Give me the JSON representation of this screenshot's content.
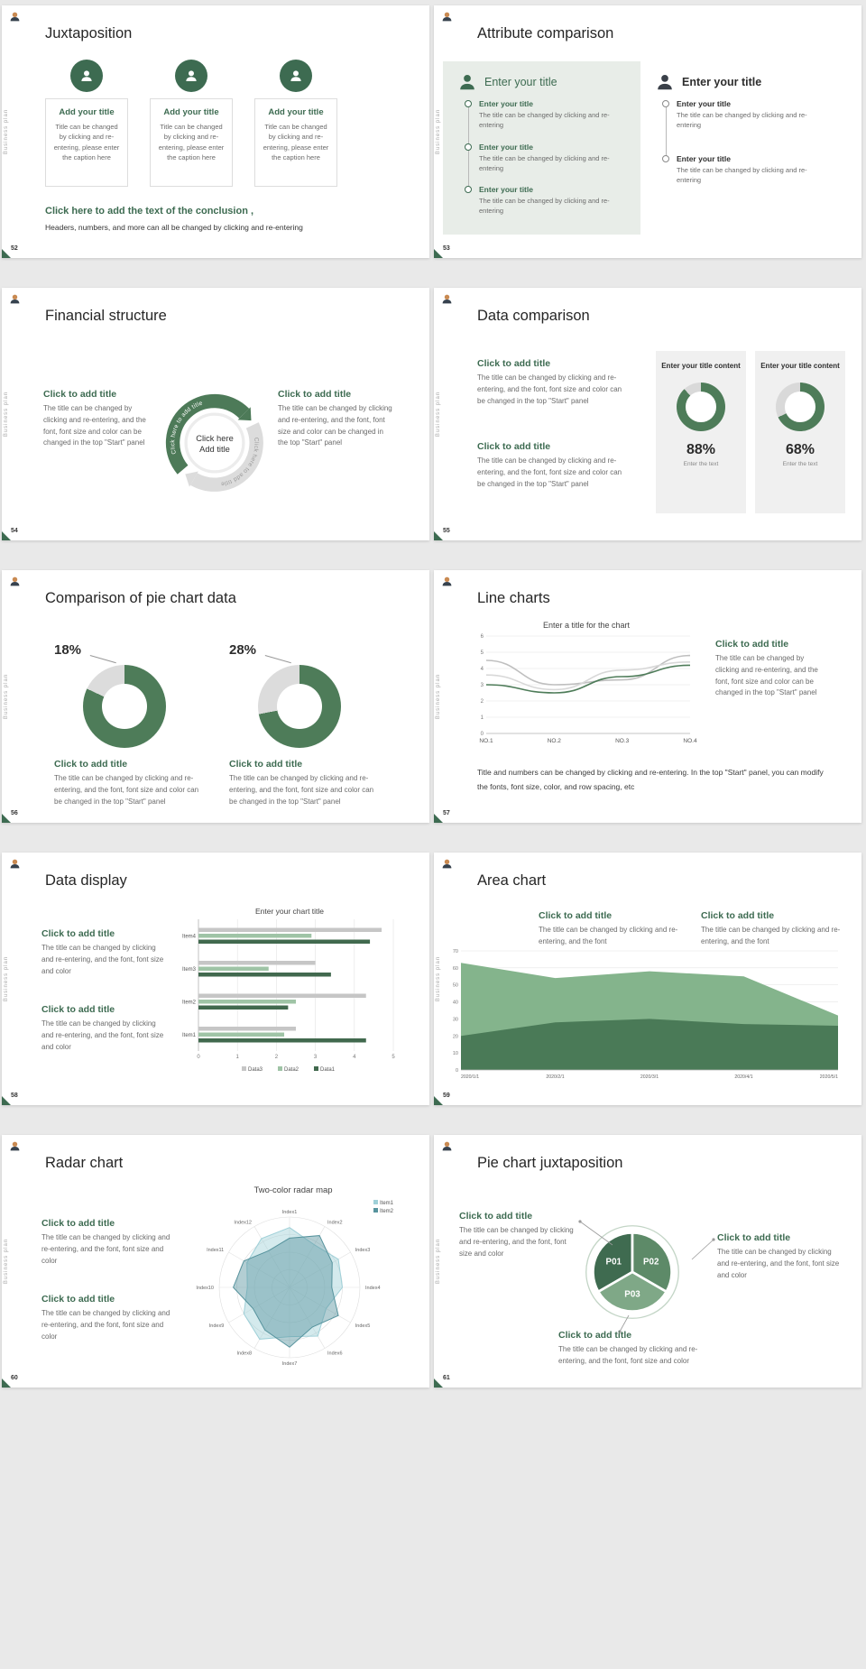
{
  "page": {
    "background": "#e9e9e9",
    "accent_green": "#3d6b51",
    "chart_green": "#4e7c59"
  },
  "common": {
    "sidebar_text": "Business plan"
  },
  "slides": [
    {
      "number": "52",
      "title": "Juxtaposition",
      "cards": [
        {
          "title": "Add your title",
          "caption": "Title can be changed by clicking and re-entering, please enter the caption here"
        },
        {
          "title": "Add your title",
          "caption": "Title can be changed by clicking and re-entering, please enter the caption here"
        },
        {
          "title": "Add your title",
          "caption": "Title can be changed by clicking and re-entering, please enter the caption here"
        }
      ],
      "conclusion_title": "Click here to add the text of the conclusion ,",
      "conclusion_body": "Headers, numbers, and more can all be changed by clicking and re-entering"
    },
    {
      "number": "53",
      "title": "Attribute comparison",
      "left": {
        "header": "Enter your title",
        "items": [
          {
            "title": "Enter your title",
            "caption": "The title can be changed by clicking and re-entering"
          },
          {
            "title": "Enter your title",
            "caption": "The title can be changed by clicking and re-entering"
          },
          {
            "title": "Enter your title",
            "caption": "The title can be changed by clicking and re-entering"
          }
        ]
      },
      "right": {
        "header": "Enter your title",
        "items": [
          {
            "title": "Enter your title",
            "caption": "The title can be changed by clicking and re-entering"
          },
          {
            "title": "Enter your title",
            "caption": "The title can be changed by clicking and re-entering"
          }
        ]
      }
    },
    {
      "number": "54",
      "title": "Financial structure",
      "left": {
        "title": "Click to add title",
        "caption": "The title can be changed by clicking and re-entering, and the font, font size and color can be changed in the top \"Start\" panel"
      },
      "right": {
        "title": "Click to add title",
        "caption": "The title can be changed by clicking and re-entering, and the font, font size and color can be changed in the top \"Start\" panel"
      },
      "center": {
        "line1": "Click here",
        "line2": "Add title",
        "arrow_label": "Click here to add title"
      }
    },
    {
      "number": "55",
      "title": "Data comparison",
      "blocks": [
        {
          "title": "Click to add title",
          "caption": "The title can be changed by clicking and re-entering, and the font, font size and color can be changed in the top \"Start\" panel"
        },
        {
          "title": "Click to add title",
          "caption": "The title can be changed by clicking and re-entering, and the font, font size and color can be changed in the top \"Start\" panel"
        }
      ],
      "panels": [
        {
          "header": "Enter your title content",
          "percent": "88%",
          "note": "Enter the text",
          "donut": {
            "type": "donut",
            "segments": [
              {
                "color": "#4e7c59",
                "pct": 88
              },
              {
                "color": "#d9d9d9",
                "pct": 12
              }
            ]
          }
        },
        {
          "header": "Enter your title content",
          "percent": "68%",
          "note": "Enter the text",
          "donut": {
            "type": "donut",
            "segments": [
              {
                "color": "#4e7c59",
                "pct": 68
              },
              {
                "color": "#d9d9d9",
                "pct": 32
              }
            ]
          }
        }
      ]
    },
    {
      "number": "56",
      "title": "Comparison of pie chart data",
      "charts": [
        {
          "percent": "18%",
          "title": "Click to add title",
          "caption": "The title can be changed by clicking and re-entering, and the font, font size and color can be changed in the top \"Start\" panel",
          "donut": {
            "type": "donut",
            "segments": [
              {
                "color": "#4e7c59",
                "pct": 82
              },
              {
                "color": "#dcdcdc",
                "pct": 18
              }
            ]
          }
        },
        {
          "percent": "28%",
          "title": "Click to add title",
          "caption": "The title can be changed by clicking and re-entering, and the font, font size and color can be changed in the top \"Start\" panel",
          "donut": {
            "type": "donut",
            "segments": [
              {
                "color": "#4e7c59",
                "pct": 72
              },
              {
                "color": "#dcdcdc",
                "pct": 28
              }
            ]
          }
        }
      ]
    },
    {
      "number": "57",
      "title": "Line charts",
      "chart": {
        "type": "line",
        "title": "Enter a title for the chart",
        "x": [
          "NO.1",
          "NO.2",
          "NO.3",
          "NO.4"
        ],
        "ylim": [
          0,
          6
        ],
        "yticks": [
          0,
          1,
          2,
          3,
          4,
          5,
          6
        ],
        "series": [
          {
            "color": "#bfbfbf",
            "values": [
              4.5,
              3.0,
              3.3,
              4.8
            ]
          },
          {
            "color": "#d8d8d8",
            "values": [
              3.6,
              2.7,
              3.9,
              4.4
            ]
          },
          {
            "color": "#4e7c59",
            "values": [
              3.0,
              2.5,
              3.5,
              4.2
            ]
          }
        ]
      },
      "side": {
        "title": "Click to add title",
        "caption": "The title can be changed by clicking and re-entering, and the font, font size and color can be changed in the top \"Start\" panel"
      },
      "footer": "Title and numbers can be changed by clicking and re-entering. In the top \"Start\" panel, you can modify the fonts, font size, color, and row spacing, etc"
    },
    {
      "number": "58",
      "title": "Data display",
      "blocks": [
        {
          "title": "Click to add title",
          "caption": "The title can be changed by clicking and re-entering, and the font, font size and color"
        },
        {
          "title": "Click to add title",
          "caption": "The title can be changed by clicking and re-entering, and the font, font size and color"
        }
      ],
      "chart": {
        "type": "barh",
        "title": "Enter your chart title",
        "categories": [
          "Item4",
          "Item3",
          "Item2",
          "Item1"
        ],
        "xlim": [
          0,
          5
        ],
        "xticks": [
          0,
          1,
          2,
          3,
          4,
          5
        ],
        "series": [
          {
            "name": "Data3",
            "color": "#c6c6c6",
            "values": [
              4.7,
              3.0,
              4.3,
              2.5
            ]
          },
          {
            "name": "Data2",
            "color": "#9fc4a6",
            "values": [
              2.9,
              1.8,
              2.5,
              2.2
            ]
          },
          {
            "name": "Data1",
            "color": "#41694e",
            "values": [
              4.4,
              3.4,
              2.3,
              4.3
            ]
          }
        ]
      }
    },
    {
      "number": "59",
      "title": "Area chart",
      "blocks": [
        {
          "title": "Click to add title",
          "caption": "The title can be changed by clicking and re-entering, and the font"
        },
        {
          "title": "Click to add title",
          "caption": "The title can be changed by clicking and re-entering, and the font"
        }
      ],
      "chart": {
        "type": "area",
        "x": [
          "2020/1/1",
          "2020/2/1",
          "2020/3/1",
          "2020/4/1",
          "2020/5/1"
        ],
        "ylim": [
          0,
          70
        ],
        "yticks": [
          0,
          10,
          20,
          30,
          40,
          50,
          60,
          70
        ],
        "series": [
          {
            "color": "#84b48c",
            "values": [
              63,
              54,
              58,
              55,
              32
            ]
          },
          {
            "color": "#4a7a57",
            "values": [
              20,
              28,
              30,
              27,
              26
            ]
          }
        ]
      }
    },
    {
      "number": "60",
      "title": "Radar chart",
      "blocks": [
        {
          "title": "Click to add title",
          "caption": "The title can be changed by clicking and re-entering, and the font, font size and color"
        },
        {
          "title": "Click to add title",
          "caption": "The title can be changed by clicking and re-entering, and the font, font size and color"
        }
      ],
      "chart": {
        "type": "radar",
        "title": "Two-color radar map",
        "axes": [
          "Index1",
          "Index2",
          "Index3",
          "Index4",
          "Index5",
          "Index6",
          "Index7",
          "Index8",
          "Index9",
          "Index10",
          "Index11",
          "Index12"
        ],
        "legend": [
          {
            "name": "Item1",
            "color": "#9fd0d8"
          },
          {
            "name": "Item2",
            "color": "#56939d"
          }
        ],
        "series": [
          {
            "color": "#9fd0d8",
            "values": [
              0.85,
              0.7,
              0.8,
              0.75,
              0.6,
              0.8,
              0.7,
              0.85,
              0.75,
              0.6,
              0.7,
              0.8
            ]
          },
          {
            "color": "#56939d",
            "values": [
              0.7,
              0.85,
              0.7,
              0.6,
              0.8,
              0.65,
              0.85,
              0.7,
              0.6,
              0.8,
              0.75,
              0.6
            ]
          }
        ]
      }
    },
    {
      "number": "61",
      "title": "Pie chart juxtaposition",
      "segments": [
        {
          "label": "P01",
          "color": "#3f6b50"
        },
        {
          "label": "P02",
          "color": "#5d8a68"
        },
        {
          "label": "P03",
          "color": "#7fa887"
        }
      ],
      "blocks": [
        {
          "title": "Click to add title",
          "caption": "The title can be changed by clicking and re-entering, and the font, font size and color"
        },
        {
          "title": "Click to add title",
          "caption": "The title can be changed by clicking and re-entering, and the font, font size and color"
        },
        {
          "title": "Click to add title",
          "caption": "The title can be changed by clicking and re-entering, and the font, font size and color"
        }
      ]
    }
  ]
}
